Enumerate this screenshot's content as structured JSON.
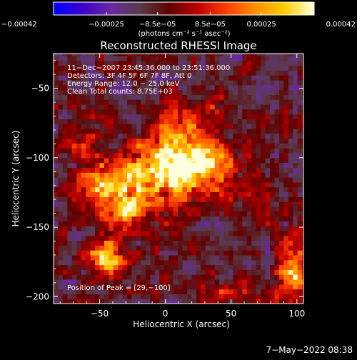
{
  "chart_data": {
    "type": "heatmap",
    "title": "Reconstructed RHESSI Image",
    "xlabel": "Heliocentric X (arcsec)",
    "ylabel": "Heliocentric Y (arcsec)",
    "xlim": [
      -85,
      105
    ],
    "ylim": [
      -205,
      -25
    ],
    "x_ticks": [
      -50,
      0,
      50,
      100
    ],
    "y_ticks": [
      -50,
      -100,
      -150,
      -200
    ],
    "x_tick_labels": [
      "−50",
      "0",
      "50",
      "100"
    ],
    "y_tick_labels": [
      "−50",
      "−100",
      "−150",
      "−200"
    ],
    "colorbar": {
      "range": [
        -0.00042,
        0.00042
      ],
      "tick_values": [
        -0.00042,
        -0.00025,
        -8.5e-05,
        8.5e-05,
        0.00025,
        0.00042
      ],
      "tick_labels": [
        "−0.00042",
        "−0.00025",
        "−8.5e−05",
        "8.5e−05",
        "0.00025",
        "0.00042"
      ],
      "unit_label": "(photons cm⁻² s⁻¹ asec⁻²)",
      "colors": [
        "#0000ff",
        "#3c00cc",
        "#6a2aa0",
        "#5a3a4a",
        "#600000",
        "#c00000",
        "#ff4000",
        "#ff9000",
        "#ffd000",
        "#ffffe0"
      ]
    },
    "info_lines": [
      "11−Dec−2007 23:45:36.000 to 23:51:36.000",
      "Detectors: 3F 4F 5F 6F 7F 8F, Att 0",
      "Energy Range: 12.0 − 25.0 keV",
      "Clean     Total counts: 8.75E+03"
    ],
    "peak_annotation": "Position of Peak = [29,−100]",
    "peak_position": [
      29,
      -100
    ],
    "sources": [
      {
        "x": 15,
        "y": -100,
        "sx": 22,
        "sy": 10,
        "amp": 1.0
      },
      {
        "x": -2,
        "y": -115,
        "sx": 34,
        "sy": 13,
        "amp": 0.7
      },
      {
        "x": -30,
        "y": -137,
        "sx": 14,
        "sy": 10,
        "amp": 0.6
      },
      {
        "x": -48,
        "y": -120,
        "sx": 10,
        "sy": 14,
        "amp": 0.4
      },
      {
        "x": -45,
        "y": -172,
        "sx": 10,
        "sy": 9,
        "amp": 0.8
      },
      {
        "x": 10,
        "y": -76,
        "sx": 14,
        "sy": 9,
        "amp": 0.42
      },
      {
        "x": 38,
        "y": -70,
        "sx": 8,
        "sy": 7,
        "amp": 0.3
      },
      {
        "x": 96,
        "y": -182,
        "sx": 7,
        "sy": 18,
        "amp": 0.65
      },
      {
        "x": 52,
        "y": -198,
        "sx": 14,
        "sy": 7,
        "amp": 0.32
      },
      {
        "x": -62,
        "y": -90,
        "sx": 8,
        "sy": 8,
        "amp": 0.25
      }
    ]
  },
  "footer": {
    "timestamp": "7−May−2022 08:38"
  }
}
